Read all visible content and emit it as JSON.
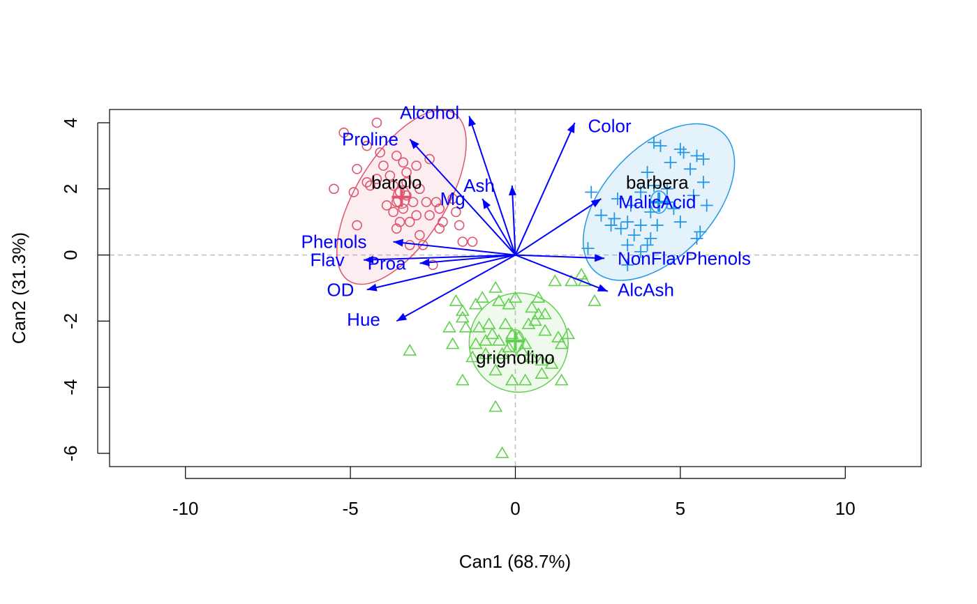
{
  "chart_data": {
    "type": "scatter",
    "title": "",
    "xlabel": "Can1 (68.7%)",
    "ylabel": "Can2 (31.3%)",
    "xlim": [
      -12.3,
      12.3
    ],
    "ylim": [
      -6.4,
      4.4
    ],
    "xticks": [
      -10,
      -5,
      0,
      5,
      10
    ],
    "yticks": [
      -6,
      -4,
      -2,
      0,
      2,
      4
    ],
    "xtick_labels": [
      "-10",
      "-5",
      "0",
      "5",
      "10"
    ],
    "ytick_labels": [
      "-6",
      "-4",
      "-2",
      "0",
      "2",
      "4"
    ],
    "grid": false,
    "reference_lines": [
      0,
      0
    ],
    "colors": {
      "barolo": "#DF536B",
      "grignolino": "#61D04F",
      "barbera": "#2297E6",
      "vectors": "#0000FF",
      "refline": "#BEBEBE"
    },
    "groups": [
      {
        "name": "barolo",
        "marker": "circle",
        "label_at": [
          -3.6,
          2.2
        ],
        "centroid": [
          -3.45,
          1.75
        ],
        "ellipse": {
          "center": [
            -3.45,
            1.75
          ],
          "rx": 3.0,
          "ry": 1.35,
          "angle_deg": -58
        },
        "points": [
          [
            -5.2,
            3.7
          ],
          [
            -4.2,
            4.0
          ],
          [
            -4.5,
            3.3
          ],
          [
            -4.1,
            3.1
          ],
          [
            -3.6,
            3.0
          ],
          [
            -3.4,
            2.8
          ],
          [
            -2.6,
            2.9
          ],
          [
            -4.8,
            2.6
          ],
          [
            -4.5,
            2.2
          ],
          [
            -4.2,
            2.3
          ],
          [
            -3.8,
            2.4
          ],
          [
            -3.3,
            2.5
          ],
          [
            -2.9,
            2.0
          ],
          [
            -5.5,
            2.0
          ],
          [
            -4.9,
            1.9
          ],
          [
            -4.4,
            2.1
          ],
          [
            -3.7,
            2.1
          ],
          [
            -3.5,
            1.9
          ],
          [
            -3.3,
            1.8
          ],
          [
            -3.6,
            1.6
          ],
          [
            -3.1,
            1.6
          ],
          [
            -2.7,
            1.6
          ],
          [
            -2.3,
            1.4
          ],
          [
            -3.4,
            1.4
          ],
          [
            -3.0,
            1.2
          ],
          [
            -2.6,
            1.2
          ],
          [
            -3.2,
            1.0
          ],
          [
            -3.5,
            1.0
          ],
          [
            -1.8,
            1.3
          ],
          [
            -2.2,
            1.0
          ],
          [
            -3.6,
            0.8
          ],
          [
            -2.9,
            0.6
          ],
          [
            -2.3,
            0.8
          ],
          [
            -1.7,
            0.9
          ],
          [
            -4.8,
            0.9
          ],
          [
            -3.2,
            0.3
          ],
          [
            -2.8,
            0.3
          ],
          [
            -1.6,
            0.4
          ],
          [
            -1.3,
            0.4
          ],
          [
            -2.5,
            -0.3
          ],
          [
            -3.7,
            1.3
          ],
          [
            -3.9,
            1.5
          ],
          [
            -2.4,
            1.6
          ],
          [
            -3.3,
            2.2
          ],
          [
            -4.0,
            2.7
          ],
          [
            -3.0,
            2.7
          ],
          [
            -1.9,
            1.7
          ]
        ]
      },
      {
        "name": "grignolino",
        "marker": "triangle",
        "label_at": [
          0.0,
          -3.1
        ],
        "centroid": [
          0.0,
          -2.6
        ],
        "ellipse": {
          "center": [
            0.1,
            -2.65
          ],
          "rx": 1.5,
          "ry": 1.5,
          "angle_deg": 0
        },
        "points": [
          [
            -1.8,
            -1.4
          ],
          [
            -1.6,
            -1.9
          ],
          [
            -1.2,
            -1.5
          ],
          [
            -1.0,
            -1.3
          ],
          [
            -0.6,
            -1.0
          ],
          [
            -0.5,
            -1.4
          ],
          [
            -0.2,
            -1.5
          ],
          [
            0.0,
            -1.3
          ],
          [
            0.5,
            -1.6
          ],
          [
            0.7,
            -1.3
          ],
          [
            1.2,
            -0.8
          ],
          [
            1.7,
            -0.8
          ],
          [
            2.0,
            -0.6
          ],
          [
            2.4,
            -1.4
          ],
          [
            -1.5,
            -2.2
          ],
          [
            -1.1,
            -2.2
          ],
          [
            -0.8,
            -2.1
          ],
          [
            -0.3,
            -2.1
          ],
          [
            0.6,
            -2.0
          ],
          [
            0.9,
            -1.8
          ],
          [
            -2.0,
            -2.2
          ],
          [
            -1.2,
            -2.7
          ],
          [
            -0.9,
            -2.6
          ],
          [
            -0.7,
            -2.4
          ],
          [
            -0.5,
            -2.6
          ],
          [
            0.1,
            -2.5
          ],
          [
            0.3,
            -2.7
          ],
          [
            0.9,
            -2.3
          ],
          [
            1.3,
            -2.5
          ],
          [
            1.6,
            -2.4
          ],
          [
            -1.9,
            -2.7
          ],
          [
            -1.3,
            -3.1
          ],
          [
            -0.9,
            -3.0
          ],
          [
            -0.4,
            -3.0
          ],
          [
            0.2,
            -2.9
          ],
          [
            0.5,
            -3.1
          ],
          [
            0.8,
            -3.2
          ],
          [
            1.4,
            -2.7
          ],
          [
            -3.2,
            -2.9
          ],
          [
            -1.6,
            -3.8
          ],
          [
            -0.1,
            -3.8
          ],
          [
            0.8,
            -3.6
          ],
          [
            1.4,
            -3.8
          ],
          [
            0.3,
            -3.8
          ],
          [
            -0.6,
            -3.5
          ],
          [
            -0.6,
            -4.6
          ],
          [
            -0.4,
            -6.0
          ],
          [
            -0.1,
            -2.4
          ],
          [
            0.4,
            -2.1
          ],
          [
            1.1,
            -3.3
          ],
          [
            -0.2,
            -2.8
          ],
          [
            0.7,
            -1.8
          ],
          [
            -1.6,
            -1.7
          ],
          [
            2.1,
            -0.8
          ]
        ]
      },
      {
        "name": "barbera",
        "marker": "plus",
        "label_at": [
          4.3,
          2.2
        ],
        "centroid": [
          4.35,
          1.6
        ],
        "ellipse": {
          "center": [
            4.35,
            1.6
          ],
          "rx": 1.65,
          "ry": 2.85,
          "angle_deg": 43
        },
        "points": [
          [
            4.2,
            3.4
          ],
          [
            4.4,
            3.3
          ],
          [
            5.0,
            3.2
          ],
          [
            5.1,
            3.1
          ],
          [
            5.5,
            3.0
          ],
          [
            5.7,
            2.9
          ],
          [
            4.7,
            2.8
          ],
          [
            5.3,
            2.6
          ],
          [
            4.0,
            2.5
          ],
          [
            4.2,
            2.1
          ],
          [
            4.6,
            2.0
          ],
          [
            5.7,
            2.2
          ],
          [
            5.4,
            1.8
          ],
          [
            5.8,
            1.5
          ],
          [
            3.8,
            1.9
          ],
          [
            4.6,
            1.6
          ],
          [
            4.8,
            1.4
          ],
          [
            3.5,
            1.5
          ],
          [
            4.1,
            1.3
          ],
          [
            3.1,
            1.7
          ],
          [
            2.3,
            1.9
          ],
          [
            2.6,
            1.2
          ],
          [
            3.0,
            1.1
          ],
          [
            3.4,
            1.0
          ],
          [
            3.8,
            0.9
          ],
          [
            4.3,
            0.9
          ],
          [
            5.0,
            1.0
          ],
          [
            3.2,
            0.8
          ],
          [
            3.6,
            0.6
          ],
          [
            4.1,
            0.5
          ],
          [
            5.6,
            0.7
          ],
          [
            5.5,
            0.5
          ],
          [
            3.4,
            0.3
          ],
          [
            4.0,
            0.3
          ],
          [
            2.2,
            0.2
          ],
          [
            3.4,
            -0.3
          ],
          [
            2.9,
            0.9
          ],
          [
            3.8,
            0.1
          ]
        ]
      }
    ],
    "vectors": [
      {
        "label": "Alcohol",
        "end": [
          -1.4,
          4.2
        ],
        "label_at": [
          -2.6,
          4.3
        ],
        "anchor": "middle"
      },
      {
        "label": "Color",
        "end": [
          1.8,
          4.0
        ],
        "label_at": [
          2.2,
          3.9
        ],
        "anchor": "start"
      },
      {
        "label": "Proline",
        "end": [
          -3.2,
          3.5
        ],
        "label_at": [
          -4.4,
          3.5
        ],
        "anchor": "middle"
      },
      {
        "label": "Ash",
        "end": [
          -0.1,
          2.1
        ],
        "label_at": [
          -1.1,
          2.1
        ],
        "anchor": "middle"
      },
      {
        "label": "Mg",
        "end": [
          -1.0,
          1.7
        ],
        "label_at": [
          -1.9,
          1.7
        ],
        "anchor": "middle"
      },
      {
        "label": "MalicAcid",
        "end": [
          2.6,
          1.7
        ],
        "label_at": [
          4.3,
          1.6
        ],
        "anchor": "middle"
      },
      {
        "label": "NonFlavPhenols",
        "end": [
          2.7,
          -0.1
        ],
        "label_at": [
          3.1,
          -0.1
        ],
        "anchor": "start"
      },
      {
        "label": "AlcAsh",
        "end": [
          2.8,
          -1.1
        ],
        "label_at": [
          3.1,
          -1.05
        ],
        "anchor": "start"
      },
      {
        "label": "Phenols",
        "end": [
          -3.7,
          0.4
        ],
        "label_at": [
          -5.5,
          0.4
        ],
        "anchor": "middle"
      },
      {
        "label": "Flav",
        "end": [
          -4.6,
          -0.15
        ],
        "label_at": [
          -5.7,
          -0.15
        ],
        "anchor": "middle"
      },
      {
        "label": "Proa",
        "end": [
          -2.9,
          -0.25
        ],
        "label_at": [
          -3.9,
          -0.25
        ],
        "anchor": "middle"
      },
      {
        "label": "OD",
        "end": [
          -4.5,
          -1.05
        ],
        "label_at": [
          -5.3,
          -1.05
        ],
        "anchor": "middle"
      },
      {
        "label": "Hue",
        "end": [
          -3.6,
          -2.0
        ],
        "label_at": [
          -4.6,
          -1.95
        ],
        "anchor": "middle"
      }
    ]
  }
}
